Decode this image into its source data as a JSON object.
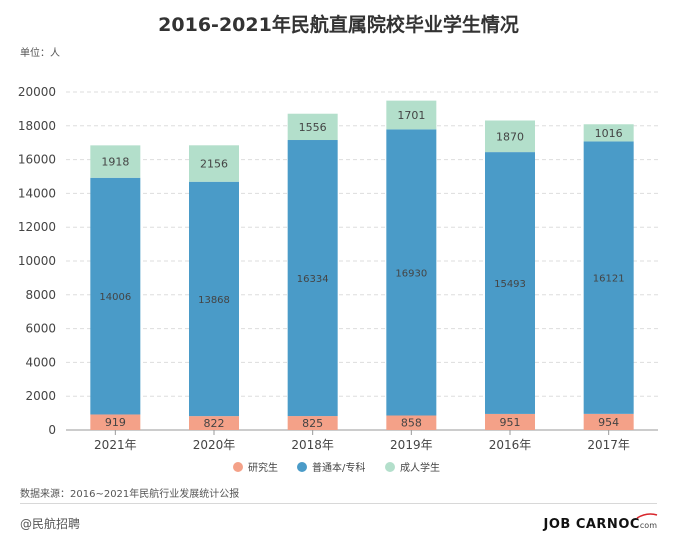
{
  "page": {
    "unit_label": "单位：人",
    "source": "数据来源：2016~2021年民航行业发展统计公报",
    "watermark": "@民航招聘",
    "brand": "JOB CARNOC",
    "brand_suffix": "com"
  },
  "colors": {
    "graduate": "#f4a188",
    "undergraduate": "#4a9bc8",
    "adult": "#b3dfcb",
    "brand_accent": "#d8262c"
  },
  "chart_data": {
    "type": "bar",
    "stacked": true,
    "title": "2016-2021年民航直属院校毕业学生情况",
    "categories": [
      "2021年",
      "2020年",
      "2018年",
      "2019年",
      "2016年",
      "2017年"
    ],
    "series": [
      {
        "name": "研究生",
        "values": [
          919,
          822,
          825,
          858,
          951,
          954
        ]
      },
      {
        "name": "普通本/专科",
        "values": [
          14006,
          13868,
          16334,
          16930,
          15493,
          16121
        ]
      },
      {
        "name": "成人学生",
        "values": [
          1918,
          2156,
          1556,
          1701,
          1870,
          1016
        ]
      }
    ],
    "ylim": [
      0,
      20000
    ],
    "yticks": [
      "0",
      "2000",
      "4000",
      "6000",
      "8000",
      "10000",
      "12000",
      "14000",
      "16000",
      "18000",
      "20000"
    ],
    "xlabel": "",
    "ylabel": "",
    "grid": true,
    "legend": "bottom"
  }
}
